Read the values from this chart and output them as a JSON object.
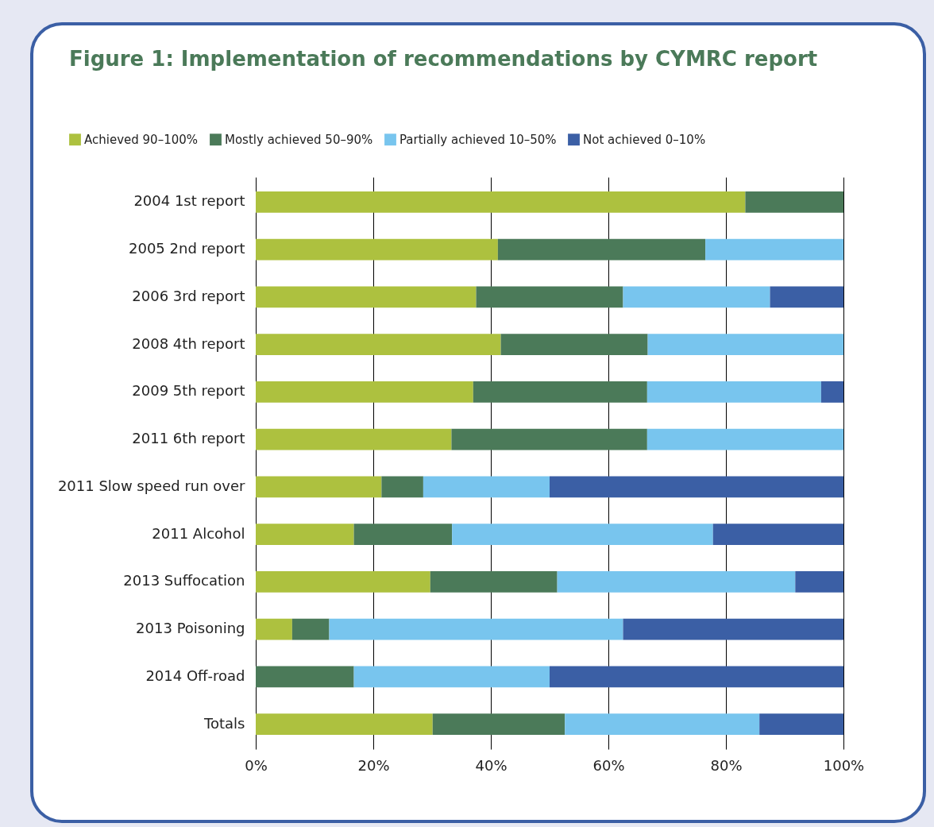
{
  "chart_data": {
    "type": "bar",
    "orientation": "horizontal",
    "stacked": true,
    "title": "Figure 1: Implementation of recommendations by CYMRC report",
    "categories": [
      "2004 1st report",
      "2005 2nd report",
      "2006 3rd report",
      "2008 4th report",
      "2009 5th report",
      "2011 6th report",
      "2011 Slow speed run over",
      "2011 Alcohol",
      "2013 Suffocation",
      "2013 Poisoning",
      "2014 Off-road",
      "Totals"
    ],
    "series": [
      {
        "name": "Achieved 90–100%",
        "color": "#adc13f",
        "values": [
          83.3,
          41.2,
          37.5,
          41.7,
          37.0,
          33.3,
          21.4,
          16.7,
          29.7,
          6.2,
          0,
          30.1
        ]
      },
      {
        "name": "Mostly achieved 50–90%",
        "color": "#4b7a59",
        "values": [
          16.7,
          35.3,
          25.0,
          25.0,
          29.6,
          33.3,
          7.1,
          16.7,
          21.6,
          6.3,
          16.7,
          22.5
        ]
      },
      {
        "name": "Partially achieved 10–50%",
        "color": "#78c5ee",
        "values": [
          0,
          23.5,
          25.0,
          33.3,
          29.6,
          33.4,
          21.5,
          44.4,
          40.5,
          50.0,
          33.3,
          33.1
        ]
      },
      {
        "name": "Not achieved 0–10%",
        "color": "#3b5fa5",
        "values": [
          0,
          0,
          12.5,
          0,
          3.8,
          0,
          50.0,
          22.2,
          8.2,
          37.5,
          50.0,
          14.3
        ]
      }
    ],
    "xlim": [
      0,
      100
    ],
    "xticks": [
      {
        "value": 0,
        "label": "0%"
      },
      {
        "value": 20,
        "label": "20%"
      },
      {
        "value": 40,
        "label": "40%"
      },
      {
        "value": 60,
        "label": "60%"
      },
      {
        "value": 80,
        "label": "80%"
      },
      {
        "value": 100,
        "label": "100%"
      }
    ],
    "grid": "x",
    "legend": "top left"
  }
}
